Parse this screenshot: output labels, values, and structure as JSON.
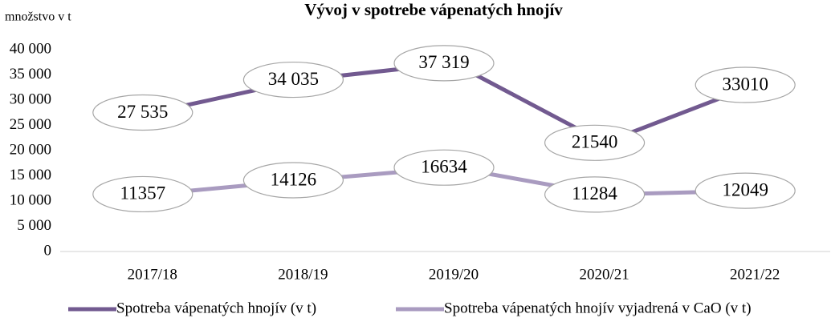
{
  "chart_data": {
    "type": "line",
    "title": "Vývoj v spotrebe vápenatých hnojív",
    "y_label": "množstvo v t",
    "categories": [
      "2017/18",
      "2018/19",
      "2019/20",
      "2020/21",
      "2021/22"
    ],
    "series": [
      {
        "name": "Spotreba vápenatých hnojív (v t)",
        "color": "#725a90",
        "values": [
          27535,
          34035,
          37319,
          21540,
          33010
        ],
        "value_labels": [
          "27 535",
          "34 035",
          "37 319",
          "21540",
          "33010"
        ]
      },
      {
        "name": "Spotreba vápenatých hnojív vyjadrená v CaO (v t)",
        "color": "#a99bc0",
        "values": [
          11357,
          14126,
          16634,
          11284,
          12049
        ]
      }
    ],
    "ylim": [
      0,
      40000
    ],
    "yticks": [
      0,
      {
        "value": 5000,
        "label": "5 000"
      },
      {
        "value": 10000,
        "label": "10 000"
      },
      {
        "value": 15000,
        "label": "15 000"
      },
      {
        "value": 20000,
        "label": "20 000"
      },
      {
        "value": 25000,
        "label": "25 000"
      },
      {
        "value": 30000,
        "label": "30 000"
      },
      {
        "value": 35000,
        "label": "35 000"
      },
      {
        "value": 40000,
        "label": "40 000"
      }
    ],
    "legend": "bottom"
  }
}
